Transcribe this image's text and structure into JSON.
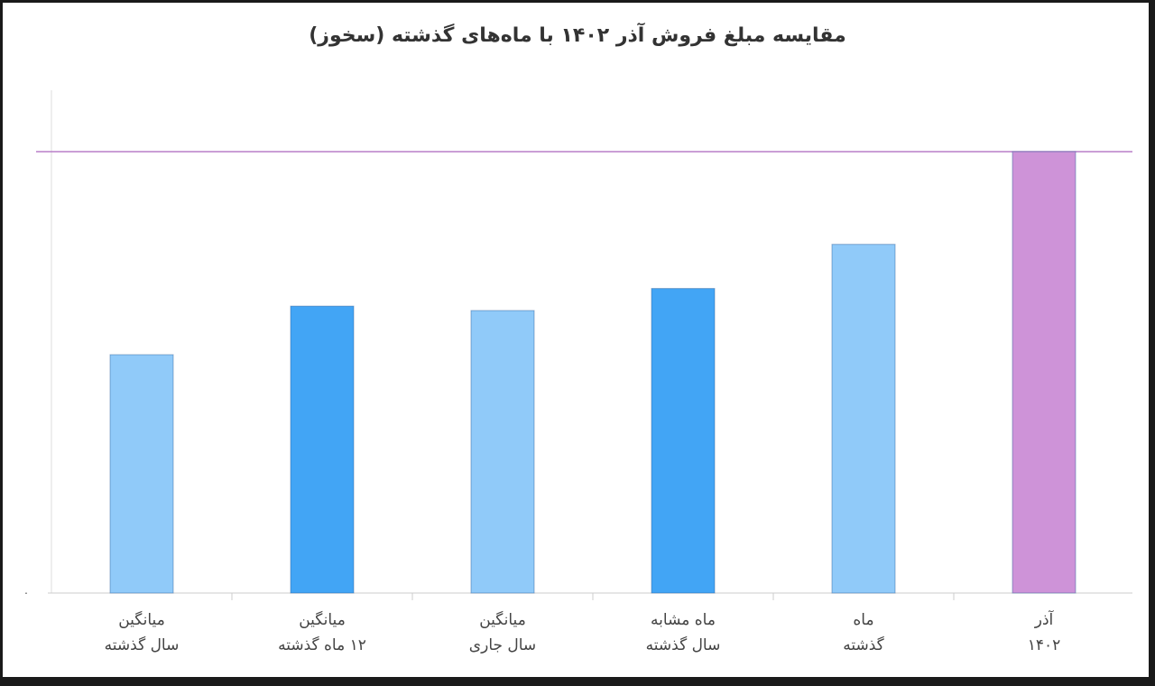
{
  "chart_data": {
    "type": "bar",
    "title": "مقایسه مبلغ فروش آذر ۱۴۰۲ با ماه‌های گذشته (سخوز)",
    "categories": [
      [
        "میانگین",
        "سال گذشته"
      ],
      [
        "میانگین",
        "۱۲ ماه گذشته"
      ],
      [
        "میانگین",
        "سال جاری"
      ],
      [
        "ماه مشابه",
        "سال گذشته"
      ],
      [
        "ماه",
        "گذشته"
      ],
      [
        "آذر",
        "۱۴۰۲"
      ]
    ],
    "values": [
      54,
      65,
      64,
      69,
      79,
      100
    ],
    "colors": [
      "#90caf9",
      "#42a5f5",
      "#90caf9",
      "#42a5f5",
      "#90caf9",
      "#ce93d8"
    ],
    "ylim": [
      0,
      100
    ],
    "yticks": [
      {
        "value": 0,
        "label": "۰"
      }
    ]
  }
}
